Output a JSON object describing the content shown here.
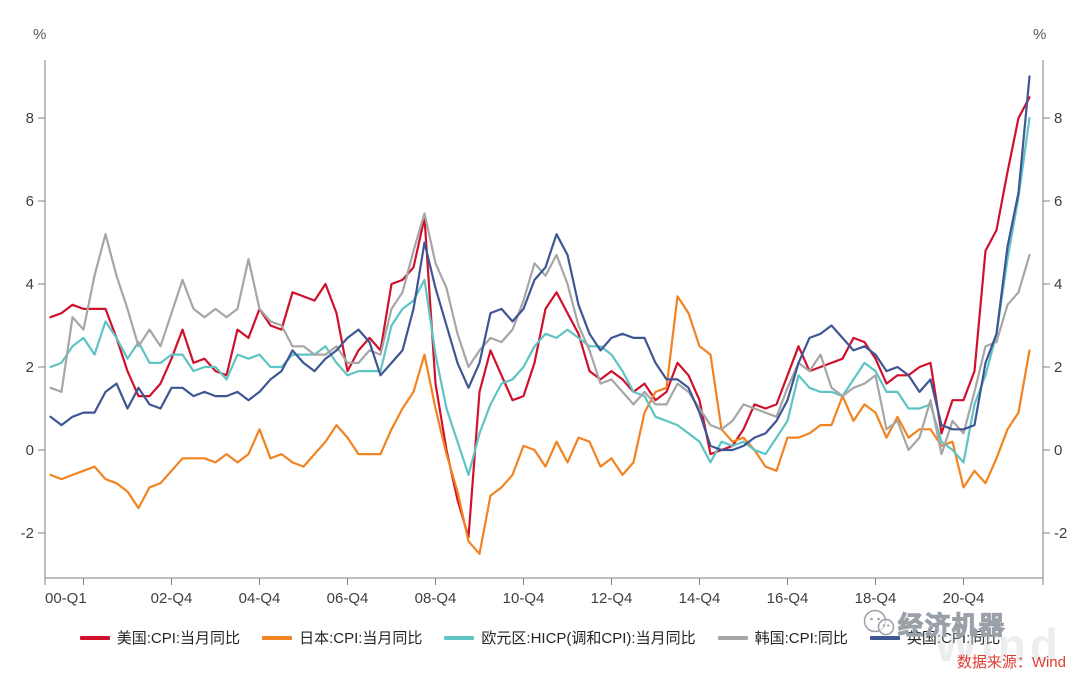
{
  "axes": {
    "unit_left": "%",
    "unit_right": "%",
    "y_ticks": [
      -2,
      0,
      2,
      4,
      6,
      8
    ],
    "x_ticks": [
      {
        "label": "00-Q1",
        "q": 0,
        "edge": true
      },
      {
        "label": "",
        "q": 3
      },
      {
        "label": "02-Q4",
        "q": 11
      },
      {
        "label": "04-Q4",
        "q": 19
      },
      {
        "label": "06-Q4",
        "q": 27
      },
      {
        "label": "08-Q4",
        "q": 35
      },
      {
        "label": "10-Q4",
        "q": 43
      },
      {
        "label": "12-Q4",
        "q": 51
      },
      {
        "label": "14-Q4",
        "q": 59
      },
      {
        "label": "16-Q4",
        "q": 67
      },
      {
        "label": "18-Q4",
        "q": 75
      },
      {
        "label": "20-Q4",
        "q": 83
      }
    ]
  },
  "source_text": "数据来源：Wind",
  "watermark": {
    "text": "经济机器",
    "brand": "Wind"
  },
  "chart_data": {
    "type": "line",
    "x_unit": "quarter",
    "x_start": "2000-Q1",
    "x_end": "2022-Q2",
    "ylabel": "%",
    "ylim": [
      -3.1,
      9.4
    ],
    "grid": false,
    "legend_position": "bottom",
    "series": [
      {
        "id": "us",
        "name": "美国:CPI:当月同比",
        "color": "#d0112b",
        "values": [
          3.2,
          3.3,
          3.5,
          3.4,
          3.4,
          3.4,
          2.7,
          1.9,
          1.3,
          1.3,
          1.6,
          2.2,
          2.9,
          2.1,
          2.2,
          1.9,
          1.8,
          2.9,
          2.7,
          3.4,
          3.0,
          2.9,
          3.8,
          3.7,
          3.6,
          4.0,
          3.3,
          1.9,
          2.4,
          2.7,
          2.4,
          4.0,
          4.1,
          4.4,
          5.6,
          1.6,
          0.0,
          -1.2,
          -2.1,
          1.4,
          2.4,
          1.8,
          1.2,
          1.3,
          2.1,
          3.4,
          3.8,
          3.3,
          2.8,
          1.9,
          1.7,
          1.9,
          1.7,
          1.4,
          1.6,
          1.2,
          1.4,
          2.1,
          1.8,
          1.2,
          -0.1,
          0.0,
          0.1,
          0.5,
          1.1,
          1.0,
          1.1,
          1.8,
          2.5,
          1.9,
          2.0,
          2.1,
          2.2,
          2.7,
          2.6,
          2.2,
          1.6,
          1.8,
          1.8,
          2.0,
          2.1,
          0.4,
          1.2,
          1.2,
          1.9,
          4.8,
          5.3,
          6.7,
          8.0,
          8.5
        ]
      },
      {
        "id": "jp",
        "name": "日本:CPI:当月同比",
        "color": "#f28321",
        "values": [
          -0.6,
          -0.7,
          -0.6,
          -0.5,
          -0.4,
          -0.7,
          -0.8,
          -1.0,
          -1.4,
          -0.9,
          -0.8,
          -0.5,
          -0.2,
          -0.2,
          -0.2,
          -0.3,
          -0.1,
          -0.3,
          -0.1,
          0.5,
          -0.2,
          -0.1,
          -0.3,
          -0.4,
          -0.1,
          0.2,
          0.6,
          0.3,
          -0.1,
          -0.1,
          -0.1,
          0.5,
          1.0,
          1.4,
          2.3,
          1.0,
          -0.1,
          -1.0,
          -2.2,
          -2.5,
          -1.1,
          -0.9,
          -0.6,
          0.1,
          0.0,
          -0.4,
          0.2,
          -0.3,
          0.3,
          0.2,
          -0.4,
          -0.2,
          -0.6,
          -0.3,
          0.9,
          1.4,
          1.5,
          3.7,
          3.3,
          2.5,
          2.3,
          0.5,
          0.2,
          0.3,
          0.0,
          -0.4,
          -0.5,
          0.3,
          0.3,
          0.4,
          0.6,
          0.6,
          1.3,
          0.7,
          1.1,
          0.9,
          0.3,
          0.8,
          0.3,
          0.5,
          0.5,
          0.1,
          0.2,
          -0.9,
          -0.5,
          -0.8,
          -0.2,
          0.5,
          0.9,
          2.4
        ]
      },
      {
        "id": "ea",
        "name": "欧元区:HICP(调和CPI):当月同比",
        "color": "#5fc4c4",
        "values": [
          2.0,
          2.1,
          2.5,
          2.7,
          2.3,
          3.1,
          2.7,
          2.2,
          2.6,
          2.1,
          2.1,
          2.3,
          2.3,
          1.9,
          2.0,
          2.0,
          1.7,
          2.3,
          2.2,
          2.3,
          2.0,
          2.0,
          2.3,
          2.3,
          2.3,
          2.5,
          2.1,
          1.8,
          1.9,
          1.9,
          1.9,
          3.0,
          3.4,
          3.6,
          4.1,
          2.3,
          1.0,
          0.2,
          -0.6,
          0.4,
          1.1,
          1.6,
          1.7,
          2.0,
          2.5,
          2.8,
          2.7,
          2.9,
          2.7,
          2.5,
          2.5,
          2.3,
          1.9,
          1.4,
          1.3,
          0.8,
          0.7,
          0.6,
          0.4,
          0.2,
          -0.3,
          0.2,
          0.1,
          0.2,
          0.0,
          -0.1,
          0.3,
          0.7,
          1.8,
          1.5,
          1.4,
          1.4,
          1.3,
          1.7,
          2.1,
          1.9,
          1.4,
          1.4,
          1.0,
          1.0,
          1.1,
          0.2,
          0.0,
          -0.3,
          1.1,
          1.8,
          2.8,
          4.6,
          6.1,
          8.0
        ]
      },
      {
        "id": "kr",
        "name": "韩国:CPI:同比",
        "color": "#a6a6a6",
        "values": [
          1.5,
          1.4,
          3.2,
          2.9,
          4.2,
          5.2,
          4.2,
          3.4,
          2.5,
          2.9,
          2.5,
          3.3,
          4.1,
          3.4,
          3.2,
          3.4,
          3.2,
          3.4,
          4.6,
          3.4,
          3.1,
          3.0,
          2.5,
          2.5,
          2.3,
          2.3,
          2.5,
          2.1,
          2.1,
          2.4,
          2.3,
          3.4,
          3.8,
          4.8,
          5.7,
          4.5,
          3.9,
          2.8,
          2.0,
          2.4,
          2.7,
          2.6,
          2.9,
          3.6,
          4.5,
          4.2,
          4.7,
          4.0,
          3.0,
          2.4,
          1.6,
          1.7,
          1.4,
          1.1,
          1.4,
          1.1,
          1.1,
          1.6,
          1.4,
          1.0,
          0.6,
          0.5,
          0.7,
          1.1,
          1.0,
          0.9,
          0.8,
          1.5,
          2.1,
          1.9,
          2.3,
          1.5,
          1.3,
          1.5,
          1.6,
          1.8,
          0.5,
          0.7,
          0.0,
          0.3,
          1.2,
          -0.1,
          0.7,
          0.4,
          1.4,
          2.5,
          2.6,
          3.5,
          3.8,
          4.7
        ]
      },
      {
        "id": "uk",
        "name": "英国:CPI:同比",
        "color": "#3e5693",
        "values": [
          0.8,
          0.6,
          0.8,
          0.9,
          0.9,
          1.4,
          1.6,
          1.0,
          1.5,
          1.1,
          1.0,
          1.5,
          1.5,
          1.3,
          1.4,
          1.3,
          1.3,
          1.4,
          1.2,
          1.4,
          1.7,
          1.9,
          2.4,
          2.1,
          1.9,
          2.2,
          2.4,
          2.7,
          2.9,
          2.6,
          1.8,
          2.1,
          2.4,
          3.4,
          5.0,
          3.9,
          3.0,
          2.1,
          1.5,
          2.1,
          3.3,
          3.4,
          3.1,
          3.4,
          4.1,
          4.4,
          5.2,
          4.7,
          3.5,
          2.8,
          2.4,
          2.7,
          2.8,
          2.7,
          2.7,
          2.1,
          1.7,
          1.7,
          1.5,
          0.9,
          0.1,
          0.0,
          0.0,
          0.1,
          0.3,
          0.4,
          0.7,
          1.2,
          2.1,
          2.7,
          2.8,
          3.0,
          2.7,
          2.4,
          2.5,
          2.3,
          1.9,
          2.0,
          1.8,
          1.4,
          1.7,
          0.6,
          0.5,
          0.5,
          0.6,
          2.1,
          2.8,
          4.9,
          6.2,
          9.0
        ]
      }
    ]
  }
}
